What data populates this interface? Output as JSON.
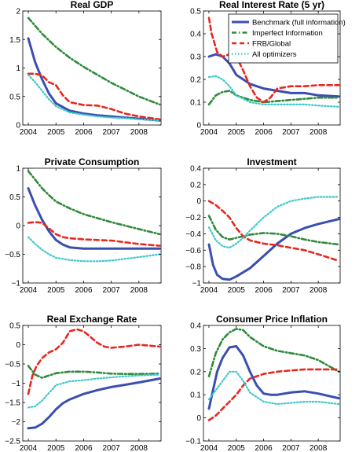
{
  "colors": {
    "benchmark": "#3a4fb0",
    "imperfect": "#2f8a3a",
    "frb": "#e8271e",
    "optimizers": "#3cc8cc"
  },
  "legend": {
    "placement": "top-right of Real Interest Rate panel",
    "entries": [
      {
        "key": "benchmark",
        "label": "Benchmark (full information)"
      },
      {
        "key": "imperfect",
        "label": "Imperfect Information"
      },
      {
        "key": "frb",
        "label": "FRB/Global"
      },
      {
        "key": "optimizers",
        "label": "All optimizers"
      }
    ]
  },
  "chart_data": [
    {
      "type": "line",
      "title": "Real GDP",
      "xlim": [
        2003.8,
        2008.8
      ],
      "ylim": [
        0,
        2
      ],
      "xticks": [
        2004,
        2005,
        2006,
        2007,
        2008
      ],
      "xtick_labels": [
        "2004",
        "2005",
        "2006",
        "2007",
        "2008"
      ],
      "yticks": [
        0,
        0.5,
        1,
        1.5,
        2
      ],
      "ytick_labels": [
        "0",
        "0.5",
        "1",
        "1.5",
        "2"
      ],
      "series": [
        {
          "key": "benchmark",
          "x": [
            2004,
            2004.25,
            2004.5,
            2004.75,
            2005,
            2005.5,
            2006,
            2006.5,
            2007,
            2007.5,
            2008,
            2008.75
          ],
          "y": [
            1.52,
            1.1,
            0.8,
            0.55,
            0.38,
            0.25,
            0.2,
            0.17,
            0.15,
            0.13,
            0.11,
            0.08
          ]
        },
        {
          "key": "imperfect",
          "x": [
            2004,
            2004.5,
            2005,
            2005.5,
            2006,
            2006.5,
            2007,
            2007.5,
            2008,
            2008.75
          ],
          "y": [
            1.88,
            1.6,
            1.37,
            1.18,
            1.02,
            0.88,
            0.74,
            0.62,
            0.5,
            0.36
          ]
        },
        {
          "key": "frb",
          "x": [
            2004,
            2004.25,
            2004.5,
            2004.75,
            2005,
            2005.25,
            2005.5,
            2006,
            2006.5,
            2007,
            2007.5,
            2008,
            2008.75
          ],
          "y": [
            0.9,
            0.9,
            0.87,
            0.75,
            0.7,
            0.52,
            0.4,
            0.35,
            0.34,
            0.28,
            0.2,
            0.15,
            0.1
          ]
        },
        {
          "key": "optimizers",
          "x": [
            2004,
            2004.25,
            2004.5,
            2004.75,
            2005,
            2005.5,
            2006,
            2006.5,
            2007,
            2007.5,
            2008,
            2008.75
          ],
          "y": [
            0.88,
            0.75,
            0.6,
            0.45,
            0.33,
            0.22,
            0.18,
            0.15,
            0.13,
            0.12,
            0.1,
            0.08
          ]
        }
      ]
    },
    {
      "type": "line",
      "title": "Real Interest Rate (5 yr)",
      "xlim": [
        2003.8,
        2008.8
      ],
      "ylim": [
        0,
        0.5
      ],
      "xticks": [
        2004,
        2005,
        2006,
        2007,
        2008
      ],
      "xtick_labels": [
        "2004",
        "2005",
        "2006",
        "2007",
        "2008"
      ],
      "yticks": [
        0,
        0.1,
        0.2,
        0.3,
        0.4,
        0.5
      ],
      "ytick_labels": [
        "0",
        "0.1",
        "0.2",
        "0.3",
        "0.4",
        "0.5"
      ],
      "series": [
        {
          "key": "benchmark",
          "x": [
            2004,
            2004.25,
            2004.5,
            2004.75,
            2005,
            2005.5,
            2006,
            2006.5,
            2007,
            2007.5,
            2008,
            2008.75
          ],
          "y": [
            0.3,
            0.31,
            0.3,
            0.27,
            0.22,
            0.18,
            0.16,
            0.15,
            0.14,
            0.14,
            0.13,
            0.125
          ]
        },
        {
          "key": "imperfect",
          "x": [
            2004,
            2004.25,
            2004.5,
            2004.75,
            2005,
            2005.5,
            2006,
            2006.5,
            2007,
            2007.5,
            2008,
            2008.75
          ],
          "y": [
            0.09,
            0.13,
            0.145,
            0.15,
            0.13,
            0.11,
            0.1,
            0.105,
            0.11,
            0.115,
            0.12,
            0.12
          ]
        },
        {
          "key": "frb",
          "x": [
            2004,
            2004.1,
            2004.3,
            2004.5,
            2004.75,
            2005,
            2005.25,
            2005.5,
            2005.75,
            2006,
            2006.25,
            2006.5,
            2007,
            2007.5,
            2008,
            2008.75
          ],
          "y": [
            0.47,
            0.4,
            0.32,
            0.3,
            0.31,
            0.3,
            0.24,
            0.17,
            0.12,
            0.1,
            0.12,
            0.16,
            0.17,
            0.17,
            0.175,
            0.175
          ]
        },
        {
          "key": "optimizers",
          "x": [
            2004,
            2004.25,
            2004.5,
            2004.75,
            2005,
            2005.5,
            2006,
            2006.5,
            2007,
            2007.5,
            2008,
            2008.75
          ],
          "y": [
            0.21,
            0.215,
            0.2,
            0.17,
            0.13,
            0.1,
            0.09,
            0.09,
            0.09,
            0.09,
            0.085,
            0.08
          ]
        }
      ]
    },
    {
      "type": "line",
      "title": "Private Consumption",
      "xlim": [
        2003.8,
        2008.8
      ],
      "ylim": [
        -1,
        1
      ],
      "xticks": [
        2004,
        2005,
        2006,
        2007,
        2008
      ],
      "xtick_labels": [
        "2004",
        "2005",
        "2006",
        "2007",
        "2008"
      ],
      "yticks": [
        -1,
        -0.5,
        0,
        0.5,
        1
      ],
      "ytick_labels": [
        "−1",
        "−0.5",
        "0",
        "0.5",
        "1"
      ],
      "series": [
        {
          "key": "benchmark",
          "x": [
            2004,
            2004.25,
            2004.5,
            2004.75,
            2005,
            2005.25,
            2005.5,
            2006,
            2006.5,
            2007,
            2007.5,
            2008,
            2008.75
          ],
          "y": [
            0.65,
            0.35,
            0.1,
            -0.1,
            -0.25,
            -0.33,
            -0.38,
            -0.4,
            -0.4,
            -0.4,
            -0.4,
            -0.4,
            -0.4
          ]
        },
        {
          "key": "imperfect",
          "x": [
            2004,
            2004.25,
            2004.5,
            2004.75,
            2005,
            2005.5,
            2006,
            2006.5,
            2007,
            2007.5,
            2008,
            2008.75
          ],
          "y": [
            0.95,
            0.8,
            0.65,
            0.53,
            0.42,
            0.3,
            0.2,
            0.13,
            0.06,
            0.0,
            -0.06,
            -0.15
          ]
        },
        {
          "key": "frb",
          "x": [
            2004,
            2004.25,
            2004.5,
            2004.75,
            2005,
            2005.25,
            2005.5,
            2006,
            2006.5,
            2007,
            2007.5,
            2008,
            2008.75
          ],
          "y": [
            0.05,
            0.06,
            0.05,
            -0.05,
            -0.15,
            -0.2,
            -0.22,
            -0.24,
            -0.25,
            -0.26,
            -0.29,
            -0.32,
            -0.35
          ]
        },
        {
          "key": "optimizers",
          "x": [
            2004,
            2004.25,
            2004.5,
            2004.75,
            2005,
            2005.5,
            2006,
            2006.5,
            2007,
            2007.5,
            2008,
            2008.75
          ],
          "y": [
            -0.2,
            -0.32,
            -0.42,
            -0.5,
            -0.56,
            -0.6,
            -0.62,
            -0.62,
            -0.61,
            -0.58,
            -0.55,
            -0.5
          ]
        }
      ]
    },
    {
      "type": "line",
      "title": "Investment",
      "xlim": [
        2003.8,
        2008.8
      ],
      "ylim": [
        -1,
        0.4
      ],
      "xticks": [
        2004,
        2005,
        2006,
        2007,
        2008
      ],
      "xtick_labels": [
        "2004",
        "2005",
        "2006",
        "2007",
        "2008"
      ],
      "yticks": [
        -1,
        -0.8,
        -0.6,
        -0.4,
        -0.2,
        0,
        0.2,
        0.4
      ],
      "ytick_labels": [
        "−1",
        "−0.8",
        "−0.6",
        "−0.4",
        "−0.2",
        "0",
        "0.2",
        "0.4"
      ],
      "series": [
        {
          "key": "benchmark",
          "x": [
            2004,
            2004.15,
            2004.3,
            2004.5,
            2004.75,
            2005,
            2005.5,
            2006,
            2006.5,
            2007,
            2007.5,
            2008,
            2008.75
          ],
          "y": [
            -0.53,
            -0.78,
            -0.9,
            -0.95,
            -0.96,
            -0.92,
            -0.82,
            -0.67,
            -0.52,
            -0.4,
            -0.33,
            -0.28,
            -0.22
          ]
        },
        {
          "key": "imperfect",
          "x": [
            2004,
            2004.25,
            2004.5,
            2004.75,
            2005,
            2005.5,
            2006,
            2006.5,
            2007,
            2007.5,
            2008,
            2008.75
          ],
          "y": [
            -0.18,
            -0.35,
            -0.44,
            -0.47,
            -0.45,
            -0.41,
            -0.39,
            -0.4,
            -0.43,
            -0.47,
            -0.5,
            -0.53
          ]
        },
        {
          "key": "frb",
          "x": [
            2004,
            2004.25,
            2004.5,
            2004.75,
            2005,
            2005.25,
            2005.5,
            2006,
            2006.5,
            2007,
            2007.5,
            2008,
            2008.75
          ],
          "y": [
            0.0,
            -0.05,
            -0.12,
            -0.2,
            -0.33,
            -0.43,
            -0.48,
            -0.52,
            -0.54,
            -0.57,
            -0.6,
            -0.65,
            -0.73
          ]
        },
        {
          "key": "optimizers",
          "x": [
            2004,
            2004.25,
            2004.5,
            2004.75,
            2005,
            2005.25,
            2005.5,
            2006,
            2006.5,
            2007,
            2007.5,
            2008,
            2008.75
          ],
          "y": [
            -0.32,
            -0.48,
            -0.55,
            -0.57,
            -0.52,
            -0.45,
            -0.36,
            -0.2,
            -0.07,
            0.0,
            0.03,
            0.05,
            0.05
          ]
        }
      ]
    },
    {
      "type": "line",
      "title": "Real Exchange Rate",
      "xlim": [
        2003.8,
        2008.8
      ],
      "ylim": [
        -2.5,
        0.5
      ],
      "xticks": [
        2004,
        2005,
        2006,
        2007,
        2008
      ],
      "xtick_labels": [
        "2004",
        "2005",
        "2006",
        "2007",
        "2008"
      ],
      "yticks": [
        -2.5,
        -2,
        -1.5,
        -1,
        -0.5,
        0,
        0.5
      ],
      "ytick_labels": [
        "−2.5",
        "−2",
        "−1.5",
        "−1",
        "−0.5",
        "0",
        "0.5"
      ],
      "series": [
        {
          "key": "benchmark",
          "x": [
            2004,
            2004.25,
            2004.5,
            2004.75,
            2005,
            2005.25,
            2005.5,
            2006,
            2006.5,
            2007,
            2007.5,
            2008,
            2008.75
          ],
          "y": [
            -2.17,
            -2.15,
            -2.05,
            -1.88,
            -1.68,
            -1.52,
            -1.42,
            -1.28,
            -1.18,
            -1.1,
            -1.04,
            -0.98,
            -0.88
          ]
        },
        {
          "key": "imperfect",
          "x": [
            2004,
            2004.25,
            2004.5,
            2004.75,
            2005,
            2005.5,
            2006,
            2006.5,
            2007,
            2007.5,
            2008,
            2008.75
          ],
          "y": [
            -0.55,
            -0.78,
            -0.86,
            -0.8,
            -0.74,
            -0.7,
            -0.7,
            -0.72,
            -0.75,
            -0.76,
            -0.76,
            -0.75
          ]
        },
        {
          "key": "frb",
          "x": [
            2004,
            2004.15,
            2004.3,
            2004.5,
            2004.75,
            2005,
            2005.25,
            2005.5,
            2005.75,
            2006,
            2006.25,
            2006.5,
            2006.75,
            2007,
            2007.5,
            2008,
            2008.75
          ],
          "y": [
            -1.28,
            -0.8,
            -0.55,
            -0.35,
            -0.2,
            -0.12,
            0.05,
            0.35,
            0.4,
            0.35,
            0.2,
            0.05,
            -0.05,
            -0.08,
            -0.05,
            0.0,
            -0.05
          ]
        },
        {
          "key": "optimizers",
          "x": [
            2004,
            2004.25,
            2004.5,
            2004.75,
            2005,
            2005.5,
            2006,
            2006.5,
            2007,
            2007.5,
            2008,
            2008.75
          ],
          "y": [
            -1.63,
            -1.6,
            -1.45,
            -1.25,
            -1.05,
            -0.95,
            -0.92,
            -0.88,
            -0.85,
            -0.82,
            -0.8,
            -0.78
          ]
        }
      ]
    },
    {
      "type": "line",
      "title": "Consumer Price Inflation",
      "xlim": [
        2003.8,
        2008.8
      ],
      "ylim": [
        -0.1,
        0.4
      ],
      "xticks": [
        2004,
        2005,
        2006,
        2007,
        2008
      ],
      "xtick_labels": [
        "2004",
        "2005",
        "2006",
        "2007",
        "2008"
      ],
      "yticks": [
        -0.1,
        0,
        0.1,
        0.2,
        0.3,
        0.4
      ],
      "ytick_labels": [
        "−0.1",
        "0",
        "0.1",
        "0.2",
        "0.3",
        "0.4"
      ],
      "series": [
        {
          "key": "benchmark",
          "x": [
            2004,
            2004.15,
            2004.3,
            2004.5,
            2004.75,
            2005,
            2005.25,
            2005.5,
            2005.75,
            2006,
            2006.25,
            2006.5,
            2007,
            2007.5,
            2008,
            2008.75
          ],
          "y": [
            0.04,
            0.12,
            0.2,
            0.26,
            0.305,
            0.31,
            0.27,
            0.2,
            0.14,
            0.105,
            0.1,
            0.1,
            0.11,
            0.115,
            0.105,
            0.085
          ]
        },
        {
          "key": "imperfect",
          "x": [
            2004,
            2004.25,
            2004.5,
            2004.75,
            2005,
            2005.25,
            2005.5,
            2006,
            2006.5,
            2007,
            2007.5,
            2008,
            2008.75
          ],
          "y": [
            0.18,
            0.28,
            0.34,
            0.37,
            0.385,
            0.38,
            0.35,
            0.31,
            0.29,
            0.28,
            0.27,
            0.25,
            0.2
          ]
        },
        {
          "key": "frb",
          "x": [
            2004,
            2004.25,
            2004.5,
            2004.75,
            2005,
            2005.25,
            2005.5,
            2006,
            2006.5,
            2007,
            2007.5,
            2008,
            2008.75
          ],
          "y": [
            -0.01,
            0.01,
            0.04,
            0.07,
            0.1,
            0.14,
            0.17,
            0.19,
            0.2,
            0.205,
            0.21,
            0.21,
            0.21
          ]
        },
        {
          "key": "optimizers",
          "x": [
            2004,
            2004.25,
            2004.5,
            2004.75,
            2005,
            2005.25,
            2005.5,
            2006,
            2006.5,
            2007,
            2007.5,
            2008,
            2008.75
          ],
          "y": [
            0.08,
            0.12,
            0.16,
            0.2,
            0.2,
            0.16,
            0.11,
            0.07,
            0.06,
            0.065,
            0.07,
            0.07,
            0.06
          ]
        }
      ]
    }
  ]
}
